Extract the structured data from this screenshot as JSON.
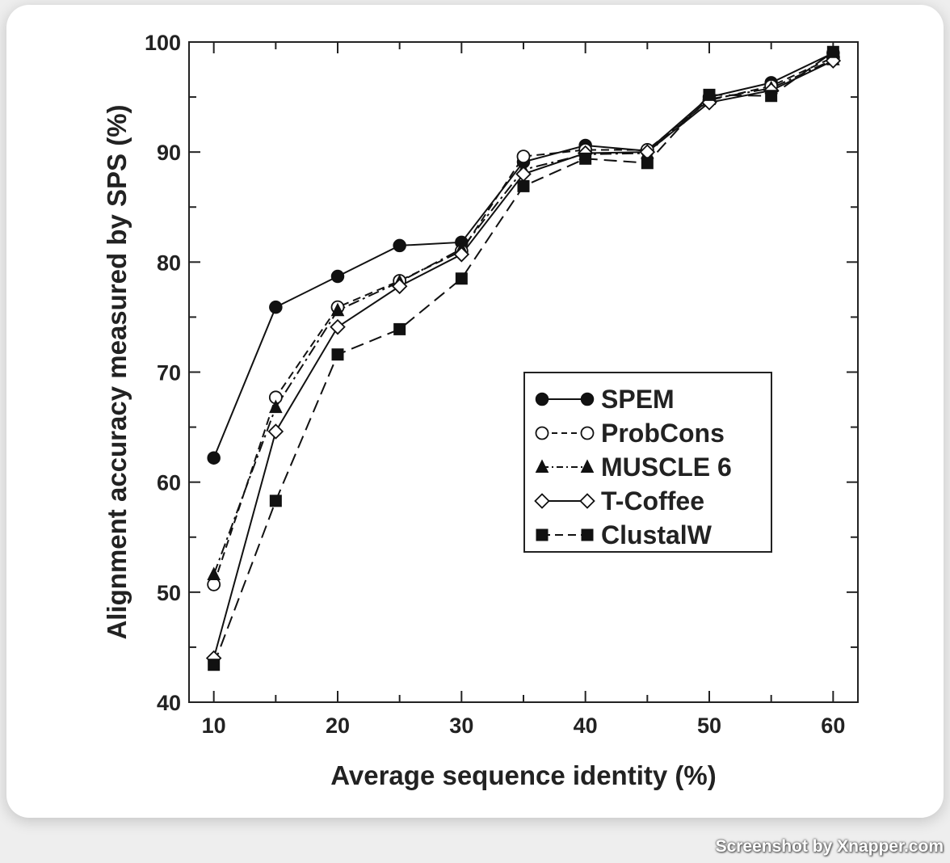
{
  "chart_data": {
    "type": "line",
    "xlabel": "Average sequence identity (%)",
    "ylabel": "Alignment accuracy measured by SPS (%)",
    "x": [
      10,
      15,
      20,
      25,
      30,
      35,
      40,
      45,
      50,
      55,
      60
    ],
    "xlim": [
      8,
      62
    ],
    "ylim": [
      40,
      100
    ],
    "xticks": [
      10,
      20,
      30,
      40,
      50,
      60
    ],
    "yticks": [
      40,
      50,
      60,
      70,
      80,
      90,
      100
    ],
    "grid": false,
    "legend_position": "center-right",
    "series": [
      {
        "name": "SPEM",
        "marker": "filled-circle",
        "line": "solid",
        "values": [
          62.2,
          75.9,
          78.7,
          81.5,
          81.8,
          89.1,
          90.6,
          90.1,
          95.0,
          96.3,
          99.0
        ]
      },
      {
        "name": "ProbCons",
        "marker": "open-circle",
        "line": "dashed",
        "values": [
          50.7,
          67.7,
          75.9,
          78.3,
          81.0,
          89.6,
          90.2,
          90.2,
          94.7,
          96.0,
          98.6
        ]
      },
      {
        "name": "MUSCLE 6",
        "marker": "filled-triangle",
        "line": "dash-dot",
        "values": [
          51.6,
          66.8,
          75.6,
          78.2,
          81.2,
          88.4,
          89.8,
          89.9,
          94.8,
          95.8,
          98.4
        ]
      },
      {
        "name": "T-Coffee",
        "marker": "open-diamond",
        "line": "solid",
        "values": [
          44.0,
          64.6,
          74.1,
          77.8,
          80.7,
          88.0,
          89.9,
          90.0,
          94.5,
          95.6,
          98.3
        ]
      },
      {
        "name": "ClustalW",
        "marker": "filled-square",
        "line": "long-dash",
        "values": [
          43.4,
          58.3,
          71.6,
          73.9,
          78.5,
          86.9,
          89.4,
          89.0,
          95.2,
          95.1,
          99.1
        ]
      }
    ]
  },
  "watermark": "Screenshot by Xnapper.com"
}
